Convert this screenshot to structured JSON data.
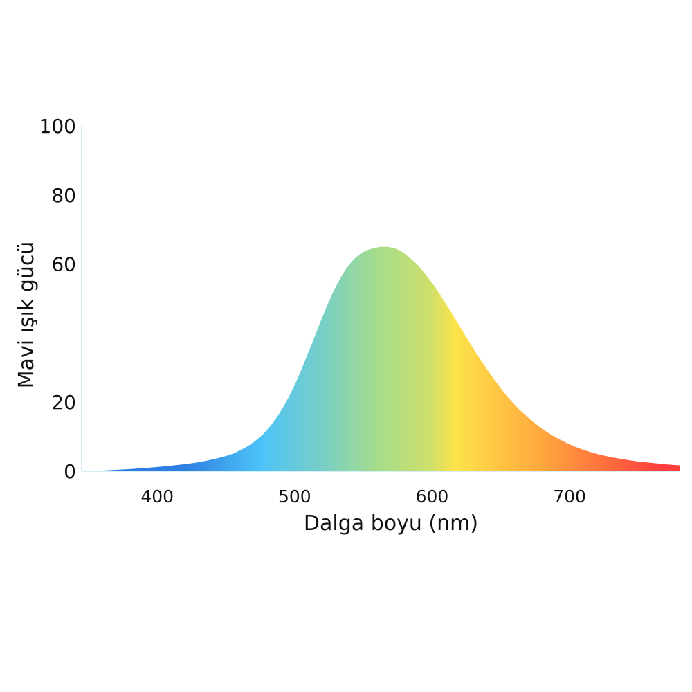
{
  "chart_data": {
    "type": "area",
    "title": "",
    "xlabel": "Dalga boyu  (nm)",
    "ylabel": "Mavi ışık gücü",
    "xlim": [
      345,
      780
    ],
    "ylim": [
      0,
      100
    ],
    "x_ticks": [
      400,
      500,
      600,
      700
    ],
    "x_tick_labels": [
      "400",
      "500",
      "600",
      "700"
    ],
    "y_ticks": [
      0,
      20,
      60,
      80,
      100
    ],
    "y_tick_labels": [
      "0",
      "20",
      "60",
      "80",
      "100"
    ],
    "grid": false,
    "legend": "none",
    "fill": "visible-spectrum gradient (blue → cyan → green → yellow → orange → red)",
    "colors": {
      "blue": "#2f7de1",
      "cyan": "#4cc3f8",
      "teal": "#79d0c4",
      "green": "#a6dc8a",
      "yellow_green": "#cfe06a",
      "yellow": "#fde34a",
      "orange": "#ffab3e",
      "red": "#ff3d3d",
      "axis": "#d6eef6",
      "text": "#111111"
    },
    "series": [
      {
        "x": [
          350,
          370,
          390,
          410,
          430,
          450,
          460,
          470,
          480,
          490,
          500,
          510,
          520,
          530,
          540,
          550,
          560,
          565,
          570,
          575,
          580,
          590,
          600,
          610,
          620,
          630,
          640,
          650,
          660,
          670,
          680,
          690,
          700,
          710,
          720,
          730,
          740,
          750,
          760,
          770,
          780
        ],
        "values": [
          0,
          0.4,
          0.9,
          1.6,
          2.6,
          4.4,
          6.0,
          8.4,
          12.0,
          17.5,
          25.0,
          34.5,
          44.5,
          53.5,
          60.0,
          63.5,
          64.8,
          65.0,
          64.8,
          64.2,
          63.0,
          59.5,
          54.5,
          48.5,
          42.0,
          35.5,
          29.5,
          24.0,
          19.3,
          15.5,
          12.3,
          9.8,
          7.8,
          6.2,
          5.0,
          4.1,
          3.4,
          2.8,
          2.4,
          2.0,
          1.7
        ]
      }
    ]
  }
}
